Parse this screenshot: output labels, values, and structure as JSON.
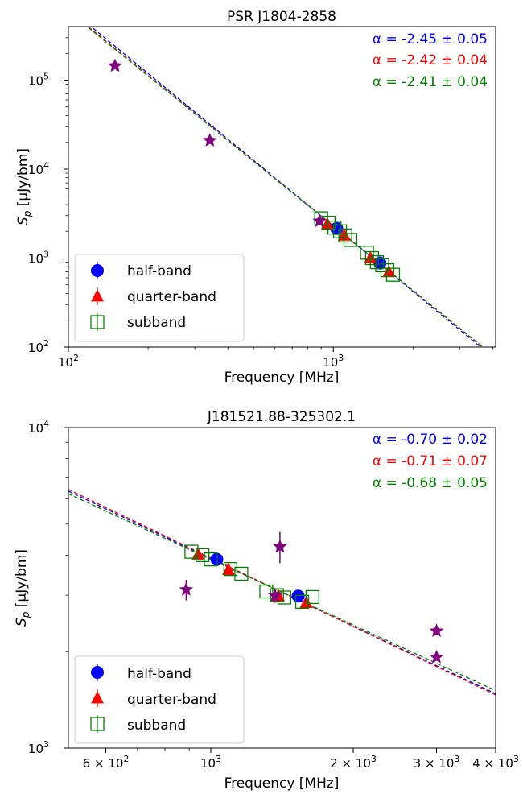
{
  "chart_data": [
    {
      "type": "scatter",
      "title": "PSR J1804-2858",
      "xlabel": "Frequency [MHz]",
      "ylabel_main": "S",
      "ylabel_sub": "p",
      "ylabel_unit": " [μJy/bm]",
      "x_scale": "log",
      "y_scale": "log",
      "xlim": [
        100,
        4100
      ],
      "ylim": [
        100,
        400000
      ],
      "x_ticks": [
        {
          "value": 100,
          "base": "10",
          "exp": "2",
          "mult": ""
        },
        {
          "value": 1000,
          "base": "10",
          "exp": "3",
          "mult": ""
        }
      ],
      "y_ticks": [
        {
          "value": 100,
          "base": "10",
          "exp": "2"
        },
        {
          "value": 1000,
          "base": "10",
          "exp": "3"
        },
        {
          "value": 10000,
          "base": "10",
          "exp": "4"
        },
        {
          "value": 100000,
          "base": "10",
          "exp": "5"
        }
      ],
      "alpha_labels": [
        {
          "text": "α =  -2.45 ± 0.05",
          "color": "#0000ff"
        },
        {
          "text": "α =  -2.42 ± 0.04",
          "color": "#ff0000"
        },
        {
          "text": "α =  -2.41 ± 0.04",
          "color": "#008000"
        }
      ],
      "fit_lines": [
        {
          "series": "half-band",
          "alpha": -2.45,
          "ref_x": 1000,
          "ref_y": 2300,
          "color": "#0000ff"
        },
        {
          "series": "quarter-band",
          "alpha": -2.42,
          "ref_x": 1000,
          "ref_y": 2300,
          "color": "#ff0000"
        },
        {
          "series": "subband",
          "alpha": -2.41,
          "ref_x": 1000,
          "ref_y": 2300,
          "color": "#008000"
        }
      ],
      "series": [
        {
          "name": "half-band",
          "marker": "circle",
          "color": "#0000ff",
          "points": [
            {
              "x": 1030,
              "y": 2150
            },
            {
              "x": 1500,
              "y": 880
            }
          ]
        },
        {
          "name": "quarter-band",
          "marker": "triangle",
          "color": "#ff0000",
          "points": [
            {
              "x": 950,
              "y": 2400
            },
            {
              "x": 1100,
              "y": 1800
            },
            {
              "x": 1380,
              "y": 1000
            },
            {
              "x": 1620,
              "y": 700
            }
          ]
        },
        {
          "name": "subband",
          "marker": "square",
          "color": "#008000",
          "points": [
            {
              "x": 900,
              "y": 2800
            },
            {
              "x": 960,
              "y": 2500
            },
            {
              "x": 1010,
              "y": 2200
            },
            {
              "x": 1060,
              "y": 2000
            },
            {
              "x": 1110,
              "y": 1800
            },
            {
              "x": 1160,
              "y": 1600
            },
            {
              "x": 1340,
              "y": 1150
            },
            {
              "x": 1400,
              "y": 1000
            },
            {
              "x": 1460,
              "y": 900
            },
            {
              "x": 1530,
              "y": 830
            },
            {
              "x": 1600,
              "y": 730
            },
            {
              "x": 1680,
              "y": 650
            }
          ]
        },
        {
          "name": "",
          "marker": "star",
          "color": "#800080",
          "points": [
            {
              "x": 150,
              "y": 145000
            },
            {
              "x": 342,
              "y": 21000
            },
            {
              "x": 887,
              "y": 2600
            }
          ]
        }
      ],
      "legend": {
        "position": "lower-left",
        "items": [
          {
            "label": "half-band",
            "marker": "circle",
            "color": "#0000ff"
          },
          {
            "label": "quarter-band",
            "marker": "triangle",
            "color": "#ff0000"
          },
          {
            "label": "subband",
            "marker": "square",
            "color": "#008000"
          }
        ]
      }
    },
    {
      "type": "scatter",
      "title": "J181521.88-325302.1",
      "xlabel": "Frequency [MHz]",
      "ylabel_main": "S",
      "ylabel_sub": "p",
      "ylabel_unit": " [μJy/bm]",
      "x_scale": "log",
      "y_scale": "log",
      "xlim": [
        500,
        4000
      ],
      "ylim": [
        1000,
        10000
      ],
      "x_ticks": [
        {
          "value": 600,
          "base": "10",
          "exp": "2",
          "mult": "6 × "
        },
        {
          "value": 1000,
          "base": "10",
          "exp": "3",
          "mult": ""
        },
        {
          "value": 2000,
          "base": "10",
          "exp": "3",
          "mult": "2 × "
        },
        {
          "value": 3000,
          "base": "10",
          "exp": "3",
          "mult": "3 × "
        },
        {
          "value": 4000,
          "base": "10",
          "exp": "3",
          "mult": "4 × "
        }
      ],
      "y_ticks": [
        {
          "value": 1000,
          "base": "10",
          "exp": "3"
        },
        {
          "value": 10000,
          "base": "10",
          "exp": "4"
        }
      ],
      "alpha_labels": [
        {
          "text": "α =  -0.70 ± 0.02",
          "color": "#0000ff"
        },
        {
          "text": "α =  -0.71 ± 0.07",
          "color": "#ff0000"
        },
        {
          "text": "α =  -0.68 ± 0.05",
          "color": "#008000"
        }
      ],
      "fit_lines": [
        {
          "series": "half-band",
          "alpha": -0.7,
          "ref_x": 1000,
          "ref_y": 3900,
          "color": "#0000ff"
        },
        {
          "series": "quarter-band",
          "alpha": -0.71,
          "ref_x": 1000,
          "ref_y": 3920,
          "color": "#ff0000"
        },
        {
          "series": "subband",
          "alpha": -0.68,
          "ref_x": 1000,
          "ref_y": 3880,
          "color": "#008000"
        }
      ],
      "series": [
        {
          "name": "half-band",
          "marker": "circle",
          "color": "#0000ff",
          "points": [
            {
              "x": 1030,
              "y": 3880
            },
            {
              "x": 1530,
              "y": 2980
            }
          ]
        },
        {
          "name": "quarter-band",
          "marker": "triangle",
          "color": "#ff0000",
          "points": [
            {
              "x": 940,
              "y": 4020
            },
            {
              "x": 1090,
              "y": 3600
            },
            {
              "x": 1390,
              "y": 2980
            },
            {
              "x": 1590,
              "y": 2840
            }
          ]
        },
        {
          "name": "subband",
          "marker": "square",
          "color": "#008000",
          "points": [
            {
              "x": 910,
              "y": 4100
            },
            {
              "x": 960,
              "y": 4000
            },
            {
              "x": 1000,
              "y": 3880
            },
            {
              "x": 1100,
              "y": 3620
            },
            {
              "x": 1160,
              "y": 3500
            },
            {
              "x": 1310,
              "y": 3080
            },
            {
              "x": 1380,
              "y": 3000
            },
            {
              "x": 1430,
              "y": 2950
            },
            {
              "x": 1560,
              "y": 2860
            },
            {
              "x": 1640,
              "y": 2960
            }
          ]
        },
        {
          "name": "",
          "marker": "star",
          "color": "#800080",
          "points": [
            {
              "x": 887,
              "y": 3120,
              "yerr": 230
            },
            {
              "x": 1400,
              "y": 4250,
              "yerr": 470
            },
            {
              "x": 1367,
              "y": 2990,
              "yerr": 150
            },
            {
              "x": 3000,
              "y": 2320
            },
            {
              "x": 3000,
              "y": 1920
            }
          ]
        }
      ],
      "legend": {
        "position": "lower-left",
        "items": [
          {
            "label": "half-band",
            "marker": "circle",
            "color": "#0000ff"
          },
          {
            "label": "quarter-band",
            "marker": "triangle",
            "color": "#ff0000"
          },
          {
            "label": "subband",
            "marker": "square",
            "color": "#008000"
          }
        ]
      }
    }
  ]
}
